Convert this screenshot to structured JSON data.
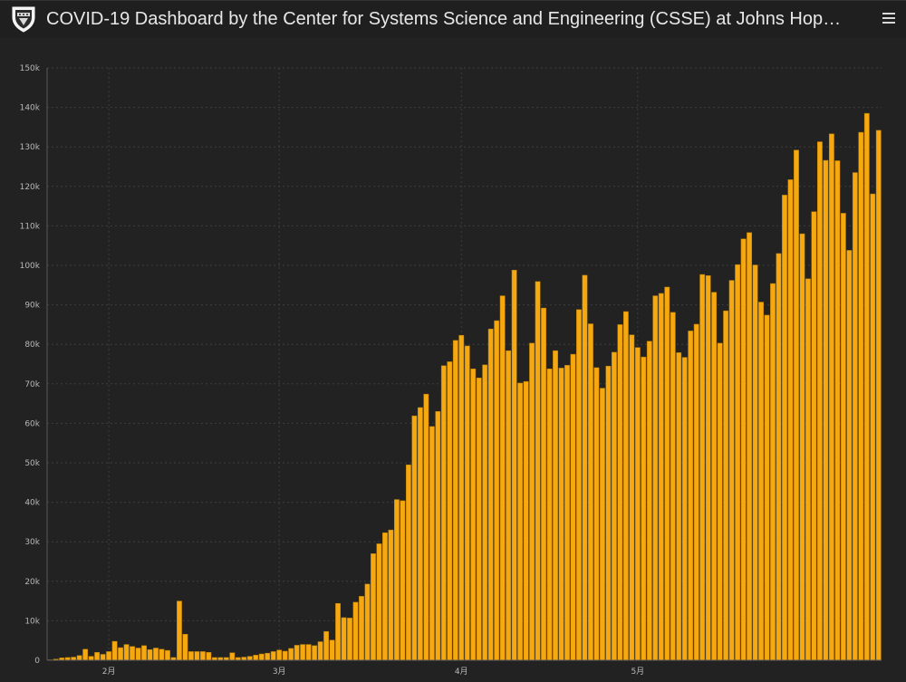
{
  "header": {
    "title": "COVID-19 Dashboard by the Center for Systems Science and Engineering (CSSE) at Johns Hop…",
    "logo_icon": "university-shield-icon",
    "menu_icon": "hamburger-menu-icon"
  },
  "colors": {
    "bar": "#f5a810",
    "bar_edge": "#b87d05",
    "grid": "#3e3e3e",
    "axis": "#5a5a5a",
    "text": "#b8b8b8",
    "background": "#222222"
  },
  "chart_data": {
    "type": "bar",
    "title": "",
    "xlabel": "",
    "ylabel": "",
    "ylim": [
      0,
      150000
    ],
    "grid": true,
    "y_ticks": [
      0,
      10000,
      20000,
      30000,
      40000,
      50000,
      60000,
      70000,
      80000,
      90000,
      100000,
      110000,
      120000,
      130000,
      140000,
      150000
    ],
    "y_tick_labels": [
      "0",
      "10k",
      "20k",
      "30k",
      "40k",
      "50k",
      "60k",
      "70k",
      "80k",
      "90k",
      "100k",
      "110k",
      "120k",
      "130k",
      "140k",
      "150k"
    ],
    "x_tick_labels": [
      {
        "label": "2月",
        "index": 10
      },
      {
        "label": "3月",
        "index": 39
      },
      {
        "label": "4月",
        "index": 70
      },
      {
        "label": "5月",
        "index": 100
      }
    ],
    "values": [
      100,
      300,
      600,
      700,
      800,
      1200,
      2800,
      1000,
      2000,
      1500,
      2200,
      4800,
      3200,
      4000,
      3500,
      3100,
      3700,
      2700,
      3100,
      2800,
      2500,
      700,
      15000,
      6600,
      2200,
      2200,
      2200,
      2000,
      700,
      700,
      700,
      1900,
      700,
      800,
      1000,
      1300,
      1600,
      1800,
      2200,
      2600,
      2300,
      3000,
      3800,
      4000,
      4000,
      3700,
      4700,
      7300,
      5100,
      14400,
      10800,
      10700,
      14700,
      16200,
      19300,
      27000,
      29500,
      32300,
      33000,
      40700,
      40400,
      49500,
      61900,
      64000,
      67400,
      59200,
      63000,
      74600,
      75600,
      81000,
      82300,
      79600,
      73800,
      71500,
      74800,
      83900,
      86000,
      92300,
      78400,
      98800,
      70200,
      70600,
      80300,
      95900,
      89200,
      73800,
      78400,
      74000,
      74700,
      77500,
      88800,
      97500,
      85200,
      74100,
      68900,
      74500,
      78000,
      85000,
      88300,
      82400,
      79200,
      76800,
      80800,
      92300,
      92900,
      94500,
      88100,
      77900,
      76700,
      83400,
      85100,
      97700,
      97400,
      93200,
      80300,
      88500,
      96200,
      100200,
      106700,
      108300,
      100100,
      90700,
      87400,
      95400,
      103000,
      117800,
      121700,
      129200,
      108000,
      96600,
      113600,
      131300,
      126600,
      133300,
      126500,
      113200,
      103800,
      123500,
      133700,
      138500,
      118100,
      134200
    ]
  }
}
